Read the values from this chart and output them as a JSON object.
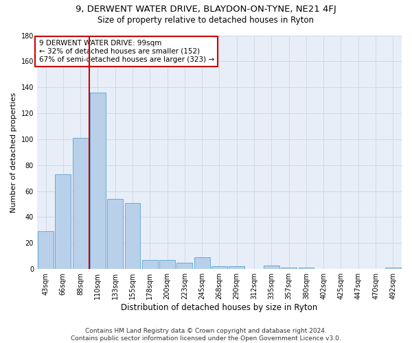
{
  "title1": "9, DERWENT WATER DRIVE, BLAYDON-ON-TYNE, NE21 4FJ",
  "title2": "Size of property relative to detached houses in Ryton",
  "xlabel": "Distribution of detached houses by size in Ryton",
  "ylabel": "Number of detached properties",
  "categories": [
    "43sqm",
    "66sqm",
    "88sqm",
    "110sqm",
    "133sqm",
    "155sqm",
    "178sqm",
    "200sqm",
    "223sqm",
    "245sqm",
    "268sqm",
    "290sqm",
    "312sqm",
    "335sqm",
    "357sqm",
    "380sqm",
    "402sqm",
    "425sqm",
    "447sqm",
    "470sqm",
    "492sqm"
  ],
  "values": [
    29,
    73,
    101,
    136,
    54,
    51,
    7,
    7,
    5,
    9,
    2,
    2,
    0,
    3,
    1,
    1,
    0,
    0,
    0,
    0,
    1
  ],
  "bar_color": "#b8d0ea",
  "bar_edge_color": "#6aaad4",
  "annotation_lines": [
    "9 DERWENT WATER DRIVE: 99sqm",
    "← 32% of detached houses are smaller (152)",
    "67% of semi-detached houses are larger (323) →"
  ],
  "annotation_box_color": "#ffffff",
  "annotation_box_edge_color": "#cc0000",
  "vline_color": "#cc0000",
  "vline_x_index": 2,
  "ylim": [
    0,
    180
  ],
  "yticks": [
    0,
    20,
    40,
    60,
    80,
    100,
    120,
    140,
    160,
    180
  ],
  "grid_color": "#d0d8e8",
  "bg_color": "#e8eef8",
  "footnote": "Contains HM Land Registry data © Crown copyright and database right 2024.\nContains public sector information licensed under the Open Government Licence v3.0.",
  "title1_fontsize": 9.5,
  "title2_fontsize": 8.5,
  "xlabel_fontsize": 8.5,
  "ylabel_fontsize": 8,
  "tick_fontsize": 7,
  "annotation_fontsize": 7.5,
  "footnote_fontsize": 6.5
}
